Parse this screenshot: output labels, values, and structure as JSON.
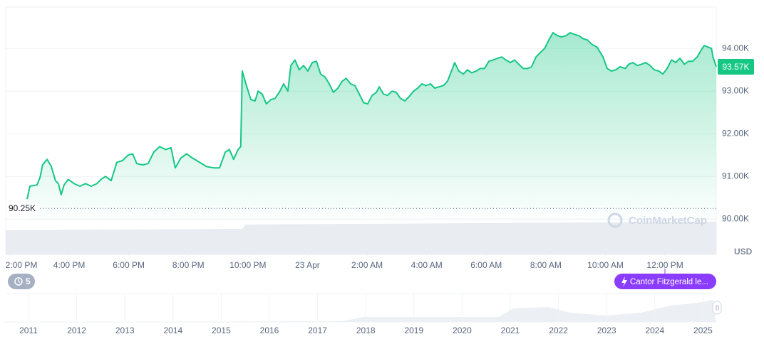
{
  "chart_data": {
    "type": "line",
    "color": "#16c784",
    "x": [
      0.59,
      0.68,
      0.92,
      1.02,
      1.11,
      1.26,
      1.4,
      1.54,
      1.64,
      1.73,
      1.83,
      1.97,
      2.17,
      2.36,
      2.55,
      2.74,
      2.93,
      3.07,
      3.22,
      3.41,
      3.6,
      3.79,
      3.98,
      4.13,
      4.27,
      4.46,
      4.65,
      4.84,
      5.04,
      5.23,
      5.42,
      5.56,
      5.75,
      5.94,
      6.14,
      6.38,
      6.61,
      6.85,
      7.05,
      7.24,
      7.38,
      7.52,
      7.67,
      7.76,
      7.81,
      7.95,
      8.1,
      8.24,
      8.34,
      8.48,
      8.62,
      8.77,
      8.91,
      9.05,
      9.2,
      9.34,
      9.44,
      9.58,
      9.72,
      9.87,
      10.01,
      10.16,
      10.3,
      10.44,
      10.59,
      10.73,
      10.87,
      11.02,
      11.16,
      11.3,
      11.45,
      11.59,
      11.74,
      11.88,
      12.02,
      12.17,
      12.31,
      12.41,
      12.55,
      12.69,
      12.84,
      12.98,
      13.12,
      13.27,
      13.41,
      13.56,
      13.7,
      13.84,
      13.98,
      14.13,
      14.27,
      14.41,
      14.56,
      14.7,
      14.85,
      14.94,
      15.08,
      15.23,
      15.37,
      15.51,
      15.66,
      15.8,
      15.94,
      16.09,
      16.23,
      16.38,
      16.52,
      16.66,
      16.81,
      16.95,
      17.09,
      17.24,
      17.38,
      17.52,
      17.67,
      17.81,
      17.96,
      18.1,
      18.24,
      18.39,
      18.53,
      18.68,
      18.82,
      18.96,
      19.11,
      19.25,
      19.39,
      19.54,
      19.72,
      19.92,
      20.06,
      20.2,
      20.35,
      20.49,
      20.67,
      20.78,
      20.92,
      21.07,
      21.21,
      21.35,
      21.5,
      21.64,
      21.79,
      21.93,
      22.07,
      22.22,
      22.36,
      22.5,
      22.65,
      22.79,
      22.93,
      23.08,
      23.22,
      23.32,
      23.46,
      23.56,
      23.61,
      23.72
    ],
    "values": [
      90470,
      90770,
      90800,
      90970,
      91270,
      91400,
      91230,
      90900,
      90830,
      90570,
      90800,
      90930,
      90830,
      90770,
      90830,
      90770,
      90830,
      90930,
      91000,
      90900,
      91330,
      91370,
      91500,
      91530,
      91300,
      91270,
      91300,
      91570,
      91700,
      91630,
      91670,
      91200,
      91430,
      91530,
      91430,
      91330,
      91230,
      91200,
      91200,
      91570,
      91630,
      91400,
      91630,
      91700,
      93470,
      93130,
      92800,
      92770,
      93000,
      92930,
      92700,
      92800,
      92830,
      92970,
      93170,
      93000,
      93600,
      93730,
      93500,
      93600,
      93470,
      93670,
      93700,
      93400,
      93330,
      93170,
      92970,
      93070,
      93230,
      93300,
      93170,
      93130,
      92930,
      92730,
      92700,
      92900,
      92970,
      93100,
      92930,
      92900,
      93000,
      92970,
      92830,
      92770,
      92870,
      93000,
      93070,
      93170,
      93130,
      93170,
      93070,
      93100,
      93130,
      93230,
      93500,
      93670,
      93470,
      93400,
      93500,
      93430,
      93470,
      93530,
      93530,
      93700,
      93730,
      93770,
      93800,
      93730,
      93670,
      93730,
      93630,
      93530,
      93530,
      93570,
      93800,
      93900,
      94000,
      94200,
      94370,
      94300,
      94270,
      94300,
      94370,
      94330,
      94300,
      94230,
      94200,
      94100,
      94030,
      93800,
      93530,
      93470,
      93500,
      93570,
      93530,
      93630,
      93670,
      93600,
      93630,
      93670,
      93600,
      93500,
      93470,
      93400,
      93530,
      93730,
      93670,
      93770,
      93630,
      93700,
      93700,
      93800,
      93970,
      94070,
      94030,
      94000,
      93800,
      93570
    ],
    "xlim": [
      -0.13,
      23.72
    ],
    "xticks": [
      {
        "value": 0,
        "label": "2:00 PM"
      },
      {
        "value": 2,
        "label": "4:00 PM"
      },
      {
        "value": 4,
        "label": "6:00 PM"
      },
      {
        "value": 6,
        "label": "8:00 PM"
      },
      {
        "value": 8,
        "label": "10:00 PM"
      },
      {
        "value": 10,
        "label": "23 Apr"
      },
      {
        "value": 12,
        "label": "2:00 AM"
      },
      {
        "value": 14,
        "label": "4:00 AM"
      },
      {
        "value": 16,
        "label": "6:00 AM"
      },
      {
        "value": 18,
        "label": "8:00 AM"
      },
      {
        "value": 20,
        "label": "10:00 AM"
      },
      {
        "value": 22,
        "label": "12:00 PM"
      }
    ],
    "ylim": [
      89170,
      94970
    ],
    "yticks": [
      {
        "value": 90000,
        "label": "90.00K"
      },
      {
        "value": 91000,
        "label": "91.00K"
      },
      {
        "value": 92000,
        "label": "92.00K"
      },
      {
        "value": 93000,
        "label": "93.00K"
      },
      {
        "value": 94000,
        "label": "94.00K"
      }
    ],
    "grid": true,
    "reference_line": {
      "value": 90250,
      "label": "90.25K"
    },
    "last_price": {
      "value": 93570,
      "label": "93.57K"
    },
    "y_unit": "USD",
    "watermark": "CoinMarketCap"
  },
  "events_count": 5,
  "news": "Cantor Fitzgerald le...",
  "navigator": {
    "years": [
      2011,
      2012,
      2013,
      2014,
      2015,
      2016,
      2017,
      2018,
      2019,
      2020,
      2021,
      2022,
      2023,
      2024,
      2025
    ]
  }
}
